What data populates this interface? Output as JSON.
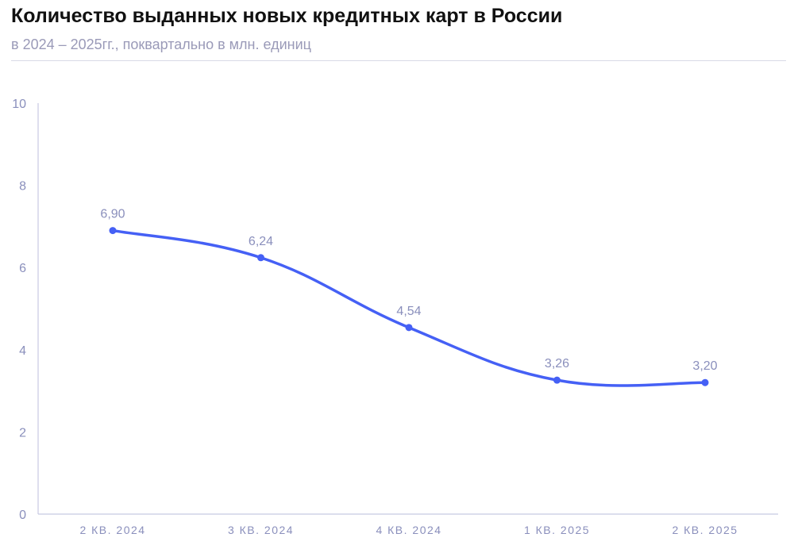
{
  "title": "Количество выданных новых кредитных карт в России",
  "subtitle": "в 2024 – 2025гг., поквартально в млн. единиц",
  "colors": {
    "line": "#4560f5",
    "axis": "#c7c9e2",
    "text": "#8a8fbc"
  },
  "chart_data": {
    "type": "line",
    "categories": [
      "2 КВ. 2024",
      "3 КВ. 2024",
      "4 КВ. 2024",
      "1 КВ. 2025",
      "2 КВ. 2025"
    ],
    "series": [
      {
        "values": [
          6.9,
          6.24,
          4.54,
          3.26,
          3.2
        ]
      }
    ],
    "data_labels": [
      "6,90",
      "6,24",
      "4,54",
      "3,26",
      "3,20"
    ],
    "y_ticks": [
      "0",
      "2",
      "4",
      "6",
      "8",
      "10"
    ],
    "ylim": [
      0,
      10
    ],
    "grid": false,
    "legend": "none"
  }
}
